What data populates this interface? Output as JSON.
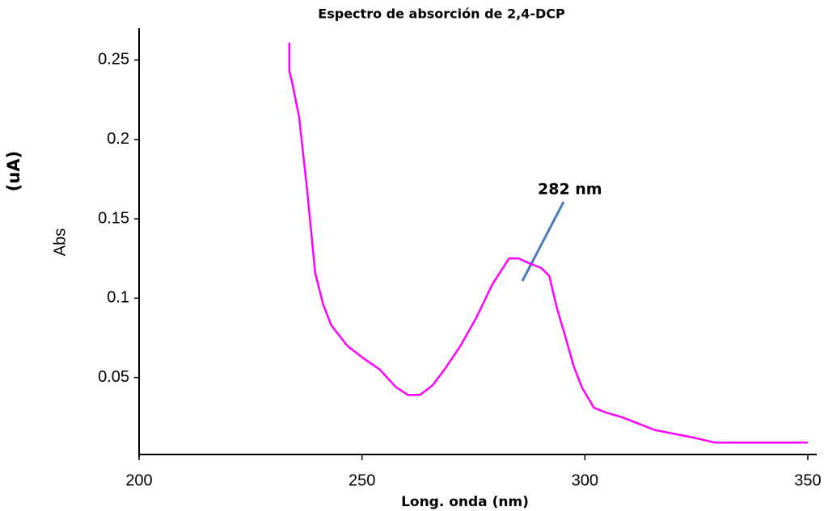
{
  "chart_data": {
    "type": "line",
    "title": "Espectro de absorción de 2,4-DCP",
    "xlabel": "Long. onda (nm)",
    "ylabel": "Abs",
    "yunit": "(uA)",
    "annotation": "282  nm",
    "color": "#ff00ff",
    "x": [
      233.7,
      233.7,
      234.4,
      235.9,
      237.7,
      239.5,
      241.3,
      243.1,
      246.7,
      250.4,
      254.0,
      257.6,
      260.3,
      263.0,
      265.8,
      268.5,
      272.1,
      275.7,
      279.3,
      283.0,
      285.1,
      287.5,
      290.2,
      292.0,
      293.8,
      295.7,
      297.5,
      299.3,
      302.0,
      304.7,
      308.3,
      312.0,
      315.6,
      319.2,
      324.6,
      329.2,
      350.0
    ],
    "values": [
      0.261,
      0.243,
      0.235,
      0.214,
      0.168,
      0.116,
      0.096,
      0.083,
      0.07,
      0.062,
      0.055,
      0.044,
      0.039,
      0.039,
      0.045,
      0.055,
      0.07,
      0.088,
      0.109,
      0.125,
      0.125,
      0.122,
      0.119,
      0.114,
      0.093,
      0.075,
      0.057,
      0.044,
      0.031,
      0.028,
      0.025,
      0.021,
      0.017,
      0.015,
      0.012,
      0.009,
      0.009
    ],
    "xlim": [
      200,
      352
    ],
    "ylim": [
      0,
      0.27
    ],
    "xticks": [
      200,
      250,
      300,
      350
    ],
    "yticks": [
      0.05,
      0.1,
      0.15,
      0.2,
      0.25
    ]
  }
}
